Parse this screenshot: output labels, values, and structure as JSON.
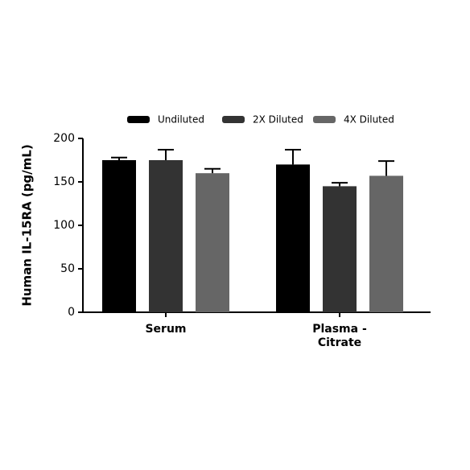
{
  "chart_data": {
    "type": "bar",
    "y_label": "Human IL-15RA (pg/mL)",
    "categories": [
      "Serum",
      "Plasma - Citrate"
    ],
    "series": [
      {
        "name": "Undiluted",
        "color": "#000000",
        "values": [
          175,
          170
        ],
        "errors": [
          3,
          17
        ]
      },
      {
        "name": "2X Diluted",
        "color": "#333333",
        "values": [
          175,
          145
        ],
        "errors": [
          12,
          4
        ]
      },
      {
        "name": "4X Diluted",
        "color": "#666666",
        "values": [
          160,
          157
        ],
        "errors": [
          5,
          17
        ]
      }
    ],
    "ylim": [
      0,
      200
    ],
    "yticks": [
      0,
      50,
      100,
      150,
      200
    ],
    "legend": "top"
  }
}
